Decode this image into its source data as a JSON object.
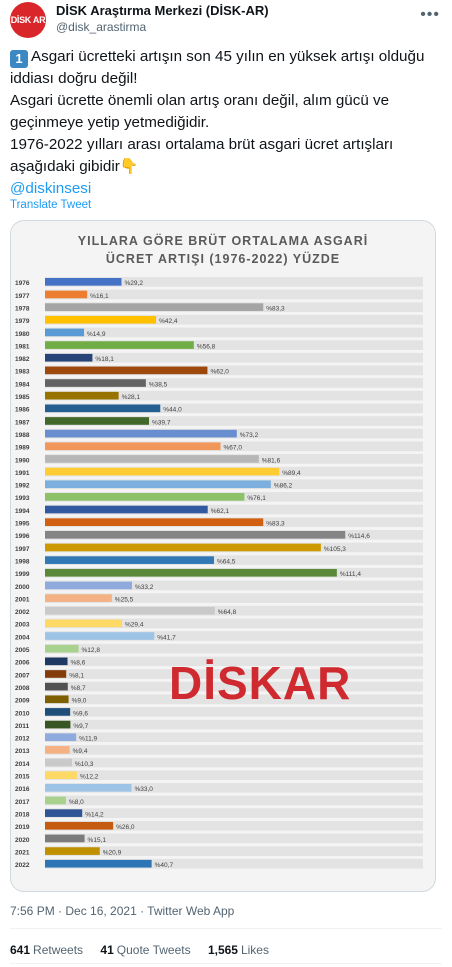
{
  "account": {
    "avatar_text": "DİSK AR",
    "display_name": "DİSK Araştırma Merkezi (DİSK-AR)",
    "handle": "@disk_arastirma",
    "more_icon": "more-horizontal-icon"
  },
  "tweet": {
    "keycap": "1",
    "line1": "Asgari ücretteki artışın son 45 yılın en yüksek artışı olduğu iddiası doğru değil!",
    "line2": "Asgari ücrette önemli olan artış oranı değil, alım gücü ve geçinmeye yetip yetmediğidir.",
    "line3": "1976-2022 yılları arası ortalama brüt asgari ücret artışları aşağıdaki gibidir",
    "point_emoji": "👇",
    "mention": "@diskinsesi",
    "translate": "Translate Tweet",
    "timestamp": "7:56 PM · Dec 16, 2021 · Twitter Web App"
  },
  "stats": {
    "retweets_count": "641",
    "retweets_label": "Retweets",
    "quotes_count": "41",
    "quotes_label": "Quote Tweets",
    "likes_count": "1,565",
    "likes_label": "Likes"
  },
  "chart_data": {
    "type": "bar",
    "orientation": "horizontal",
    "title": "YILLARA GÖRE BRÜT ORTALAMA ASGARİ ÜCRET ARTIŞI (1976-2022) YÜZDE",
    "title_line1": "YILLARA GÖRE BRÜT ORTALAMA ASGARİ",
    "title_line2": "ÜCRET ARTIŞI (1976-2022) YÜZDE",
    "watermark": "DİSKAR",
    "categories": [
      "1976",
      "1977",
      "1978",
      "1979",
      "1980",
      "1981",
      "1982",
      "1983",
      "1984",
      "1985",
      "1986",
      "1987",
      "1988",
      "1989",
      "1990",
      "1991",
      "1992",
      "1993",
      "1994",
      "1995",
      "1996",
      "1997",
      "1998",
      "1999",
      "2000",
      "2001",
      "2002",
      "2003",
      "2004",
      "2005",
      "2006",
      "2007",
      "2008",
      "2009",
      "2010",
      "2011",
      "2012",
      "2013",
      "2014",
      "2015",
      "2016",
      "2017",
      "2018",
      "2019",
      "2020",
      "2021",
      "2022"
    ],
    "values": [
      29.2,
      16.1,
      83.3,
      42.4,
      14.9,
      56.8,
      18.1,
      62.0,
      38.5,
      28.1,
      44.0,
      39.7,
      73.2,
      67.0,
      81.6,
      89.4,
      86.2,
      76.1,
      62.1,
      83.3,
      114.6,
      105.3,
      64.5,
      111.4,
      33.2,
      25.5,
      64.8,
      29.4,
      41.7,
      12.8,
      8.6,
      8.1,
      8.7,
      9.0,
      9.6,
      9.7,
      11.9,
      9.4,
      10.3,
      12.2,
      33.0,
      8.0,
      14.2,
      26.0,
      15.1,
      20.9,
      40.7
    ],
    "value_labels": [
      "%29,2",
      "%16,1",
      "%83,3",
      "%42,4",
      "%14,9",
      "%56,8",
      "%18,1",
      "%62,0",
      "%38,5",
      "%28,1",
      "%44,0",
      "%39,7",
      "%73,2",
      "%67,0",
      "%81,6",
      "%89,4",
      "%86,2",
      "%76,1",
      "%62,1",
      "%83,3",
      "%114,6",
      "%105,3",
      "%64,5",
      "%111,4",
      "%33,2",
      "%25,5",
      "%64,8",
      "%29,4",
      "%41,7",
      "%12,8",
      "%8,6",
      "%8,1",
      "%8,7",
      "%9,0",
      "%9,6",
      "%9,7",
      "%11,9",
      "%9,4",
      "%10,3",
      "%12,2",
      "%33,0",
      "%8,0",
      "%14,2",
      "%26,0",
      "%15,1",
      "%20,9",
      "%40,7"
    ],
    "colors": [
      "#4472c4",
      "#ed7d31",
      "#a5a5a5",
      "#ffc000",
      "#5b9bd5",
      "#70ad47",
      "#264478",
      "#9e480e",
      "#636363",
      "#997300",
      "#255e91",
      "#43682b",
      "#698ed0",
      "#f1975a",
      "#b7b7b7",
      "#ffcd33",
      "#7cafdd",
      "#8cc168",
      "#335aa1",
      "#d26012",
      "#848484",
      "#cc9a00",
      "#3278b4",
      "#5a8a39",
      "#8faadc",
      "#f4b183",
      "#c9c9c9",
      "#ffd966",
      "#9dc3e6",
      "#a9d18e",
      "#1f3864",
      "#843c0c",
      "#525252",
      "#7f6000",
      "#1f4e79",
      "#375623",
      "#8faadc",
      "#f4b183",
      "#c9c9c9",
      "#ffd966",
      "#9dc3e6",
      "#a9d18e",
      "#2f5597",
      "#c55a11",
      "#7b7b7b",
      "#bf9000",
      "#2e75b6"
    ],
    "xlim": [
      0,
      120
    ],
    "grid": false,
    "legend": "none"
  }
}
